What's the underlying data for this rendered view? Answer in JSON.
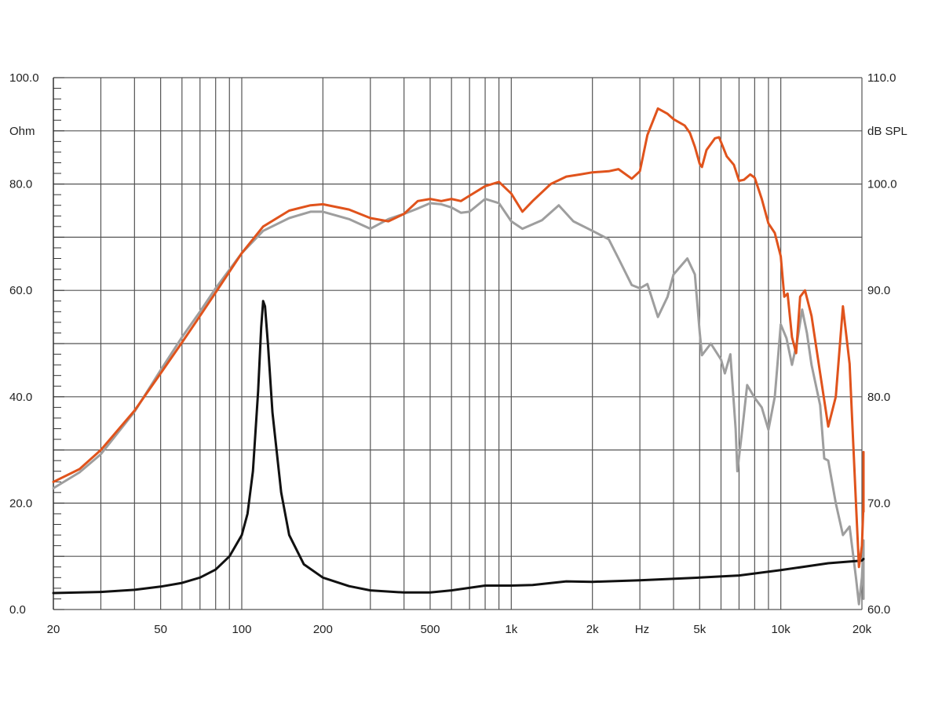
{
  "chart_data": {
    "type": "line",
    "x_scale": "log",
    "xlim": [
      20,
      20000
    ],
    "x_ticks": [
      {
        "value": 20,
        "label": "20"
      },
      {
        "value": 50,
        "label": "50"
      },
      {
        "value": 100,
        "label": "100"
      },
      {
        "value": 200,
        "label": "200"
      },
      {
        "value": 500,
        "label": "500"
      },
      {
        "value": 1000,
        "label": "1k"
      },
      {
        "value": 2000,
        "label": "2k"
      },
      {
        "value": 5000,
        "label": "5k"
      },
      {
        "value": 10000,
        "label": "10k"
      },
      {
        "value": 20000,
        "label": "20k"
      }
    ],
    "x_unit_label": "Hz",
    "x_unit_between": [
      2000,
      5000
    ],
    "x_gridlines": [
      20,
      30,
      40,
      50,
      60,
      70,
      80,
      90,
      100,
      200,
      300,
      400,
      500,
      600,
      700,
      800,
      900,
      1000,
      2000,
      3000,
      4000,
      5000,
      6000,
      7000,
      8000,
      9000,
      10000,
      20000
    ],
    "y_left": {
      "ylim": [
        0,
        100
      ],
      "unit_label": "Ohm",
      "ticks": [
        {
          "value": 0,
          "label": "0.0"
        },
        {
          "value": 20,
          "label": "20.0"
        },
        {
          "value": 40,
          "label": "40.0"
        },
        {
          "value": 60,
          "label": "60.0"
        },
        {
          "value": 80,
          "label": "80.0"
        },
        {
          "value": 100,
          "label": "100.0"
        }
      ],
      "gridlines": [
        0,
        10,
        20,
        30,
        40,
        50,
        60,
        70,
        80,
        90,
        100
      ]
    },
    "y_right": {
      "ylim": [
        60,
        110
      ],
      "unit_label": "dB SPL",
      "ticks": [
        {
          "value": 60,
          "label": "60.0"
        },
        {
          "value": 70,
          "label": "70.0"
        },
        {
          "value": 80,
          "label": "80.0"
        },
        {
          "value": 90,
          "label": "90.0"
        },
        {
          "value": 100,
          "label": "100.0"
        },
        {
          "value": 110,
          "label": "110.0"
        }
      ]
    },
    "grid": true,
    "series": [
      {
        "color": "#e0531c",
        "axis": "right",
        "points": [
          [
            20,
            72.0
          ],
          [
            25,
            73.2
          ],
          [
            30,
            75.0
          ],
          [
            40,
            78.7
          ],
          [
            50,
            82.2
          ],
          [
            60,
            85.1
          ],
          [
            70,
            87.6
          ],
          [
            80,
            89.8
          ],
          [
            100,
            93.5
          ],
          [
            120,
            96.0
          ],
          [
            150,
            97.5
          ],
          [
            180,
            98.0
          ],
          [
            200,
            98.1
          ],
          [
            250,
            97.6
          ],
          [
            300,
            96.8
          ],
          [
            350,
            96.5
          ],
          [
            400,
            97.2
          ],
          [
            450,
            98.4
          ],
          [
            500,
            98.6
          ],
          [
            550,
            98.4
          ],
          [
            600,
            98.6
          ],
          [
            650,
            98.4
          ],
          [
            700,
            98.9
          ],
          [
            800,
            99.8
          ],
          [
            900,
            100.2
          ],
          [
            1000,
            99.1
          ],
          [
            1100,
            97.4
          ],
          [
            1200,
            98.4
          ],
          [
            1400,
            100.0
          ],
          [
            1600,
            100.7
          ],
          [
            1800,
            100.9
          ],
          [
            2000,
            101.1
          ],
          [
            2300,
            101.2
          ],
          [
            2500,
            101.4
          ],
          [
            2800,
            100.5
          ],
          [
            3000,
            101.2
          ],
          [
            3200,
            104.6
          ],
          [
            3500,
            107.1
          ],
          [
            3800,
            106.6
          ],
          [
            4000,
            106.1
          ],
          [
            4400,
            105.5
          ],
          [
            4600,
            104.8
          ],
          [
            4800,
            103.5
          ],
          [
            5000,
            101.9
          ],
          [
            5100,
            101.6
          ],
          [
            5300,
            103.2
          ],
          [
            5700,
            104.3
          ],
          [
            5900,
            104.4
          ],
          [
            6300,
            102.6
          ],
          [
            6700,
            101.8
          ],
          [
            7000,
            100.3
          ],
          [
            7300,
            100.4
          ],
          [
            7700,
            100.9
          ],
          [
            8000,
            100.6
          ],
          [
            8500,
            98.6
          ],
          [
            9000,
            96.3
          ],
          [
            9500,
            95.4
          ],
          [
            10000,
            93.2
          ],
          [
            10300,
            89.4
          ],
          [
            10600,
            89.7
          ],
          [
            11000,
            85.6
          ],
          [
            11400,
            84.1
          ],
          [
            11800,
            89.4
          ],
          [
            12300,
            90.0
          ],
          [
            13000,
            87.6
          ],
          [
            14000,
            82.2
          ],
          [
            15000,
            77.2
          ],
          [
            16000,
            80.0
          ],
          [
            17000,
            88.5
          ],
          [
            18000,
            83.1
          ],
          [
            19000,
            70.0
          ],
          [
            19500,
            64.0
          ],
          [
            20000,
            66.0
          ],
          [
            20500,
            70.0
          ],
          [
            21000,
            74.8
          ],
          [
            21800,
            74.0
          ],
          [
            22500,
            69.2
          ]
        ]
      },
      {
        "color": "#9e9e9e",
        "axis": "right",
        "points": [
          [
            20,
            71.4
          ],
          [
            25,
            72.9
          ],
          [
            30,
            74.6
          ],
          [
            40,
            78.6
          ],
          [
            50,
            82.5
          ],
          [
            60,
            85.6
          ],
          [
            70,
            88.0
          ],
          [
            80,
            90.2
          ],
          [
            100,
            93.5
          ],
          [
            120,
            95.6
          ],
          [
            150,
            96.8
          ],
          [
            180,
            97.4
          ],
          [
            200,
            97.4
          ],
          [
            250,
            96.7
          ],
          [
            300,
            95.8
          ],
          [
            350,
            96.7
          ],
          [
            400,
            97.2
          ],
          [
            450,
            97.7
          ],
          [
            500,
            98.2
          ],
          [
            550,
            98.1
          ],
          [
            600,
            97.8
          ],
          [
            650,
            97.3
          ],
          [
            700,
            97.4
          ],
          [
            800,
            98.6
          ],
          [
            900,
            98.2
          ],
          [
            1000,
            96.5
          ],
          [
            1100,
            95.8
          ],
          [
            1300,
            96.6
          ],
          [
            1500,
            98.0
          ],
          [
            1700,
            96.5
          ],
          [
            2000,
            95.6
          ],
          [
            2300,
            94.8
          ],
          [
            2500,
            93.0
          ],
          [
            2800,
            90.5
          ],
          [
            3000,
            90.2
          ],
          [
            3200,
            90.6
          ],
          [
            3500,
            87.5
          ],
          [
            3800,
            89.4
          ],
          [
            4000,
            91.5
          ],
          [
            4500,
            93.0
          ],
          [
            4800,
            91.5
          ],
          [
            5000,
            86.1
          ],
          [
            5100,
            83.9
          ],
          [
            5500,
            85.0
          ],
          [
            6000,
            83.5
          ],
          [
            6200,
            82.2
          ],
          [
            6500,
            84.0
          ],
          [
            6800,
            77.0
          ],
          [
            6900,
            73.0
          ],
          [
            7200,
            77.0
          ],
          [
            7500,
            81.1
          ],
          [
            8000,
            79.9
          ],
          [
            8500,
            79.0
          ],
          [
            9000,
            76.9
          ],
          [
            9500,
            80.0
          ],
          [
            10000,
            86.8
          ],
          [
            10500,
            85.5
          ],
          [
            11000,
            83.0
          ],
          [
            11500,
            85.2
          ],
          [
            12000,
            88.2
          ],
          [
            12500,
            86.0
          ],
          [
            13000,
            83.0
          ],
          [
            14000,
            79.2
          ],
          [
            14500,
            74.2
          ],
          [
            15000,
            74.0
          ],
          [
            16000,
            70.0
          ],
          [
            17000,
            67.0
          ],
          [
            18000,
            67.8
          ],
          [
            19000,
            63.0
          ],
          [
            19500,
            60.5
          ],
          [
            20000,
            63.0
          ],
          [
            20500,
            65.8
          ],
          [
            21000,
            62.0
          ],
          [
            21500,
            61.0
          ],
          [
            22000,
            66.0
          ],
          [
            22500,
            66.5
          ]
        ]
      },
      {
        "color": "#111111",
        "axis": "left",
        "points": [
          [
            20,
            3.1
          ],
          [
            30,
            3.3
          ],
          [
            40,
            3.7
          ],
          [
            50,
            4.3
          ],
          [
            60,
            5.0
          ],
          [
            70,
            6.0
          ],
          [
            80,
            7.5
          ],
          [
            90,
            10.0
          ],
          [
            100,
            14.0
          ],
          [
            105,
            18.0
          ],
          [
            110,
            26.0
          ],
          [
            115,
            41.0
          ],
          [
            118,
            53.0
          ],
          [
            120,
            58.0
          ],
          [
            122,
            57.0
          ],
          [
            125,
            50.0
          ],
          [
            130,
            37.0
          ],
          [
            140,
            22.0
          ],
          [
            150,
            14.0
          ],
          [
            170,
            8.5
          ],
          [
            200,
            6.0
          ],
          [
            250,
            4.4
          ],
          [
            300,
            3.6
          ],
          [
            400,
            3.2
          ],
          [
            500,
            3.2
          ],
          [
            600,
            3.6
          ],
          [
            800,
            4.5
          ],
          [
            1000,
            4.5
          ],
          [
            1200,
            4.6
          ],
          [
            1600,
            5.3
          ],
          [
            2000,
            5.2
          ],
          [
            3000,
            5.5
          ],
          [
            5000,
            6.0
          ],
          [
            7000,
            6.4
          ],
          [
            10000,
            7.4
          ],
          [
            15000,
            8.7
          ],
          [
            20000,
            9.2
          ],
          [
            22500,
            9.5
          ]
        ]
      }
    ]
  }
}
